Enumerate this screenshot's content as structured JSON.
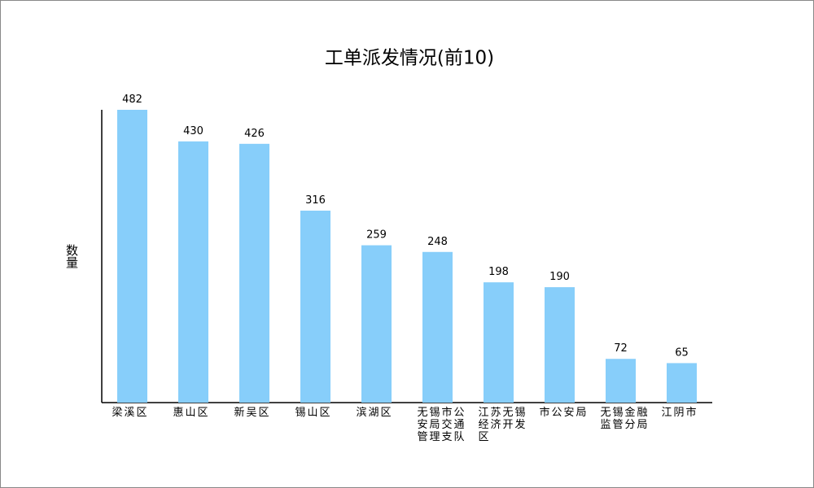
{
  "chart_data": {
    "type": "bar",
    "title": "工单派发情况(前10)",
    "y_label": "数量",
    "categories": [
      "梁溪区",
      "惠山区",
      "新吴区",
      "锡山区",
      "滨湖区",
      "无锡市公安局交通管理支队",
      "江苏无锡经济开发区",
      "市公安局",
      "无锡金融监管分局",
      "江阴市"
    ],
    "values": [
      482,
      430,
      426,
      316,
      259,
      248,
      198,
      190,
      72,
      65
    ],
    "color": "#87cefa",
    "ylim": [
      0,
      482
    ]
  }
}
